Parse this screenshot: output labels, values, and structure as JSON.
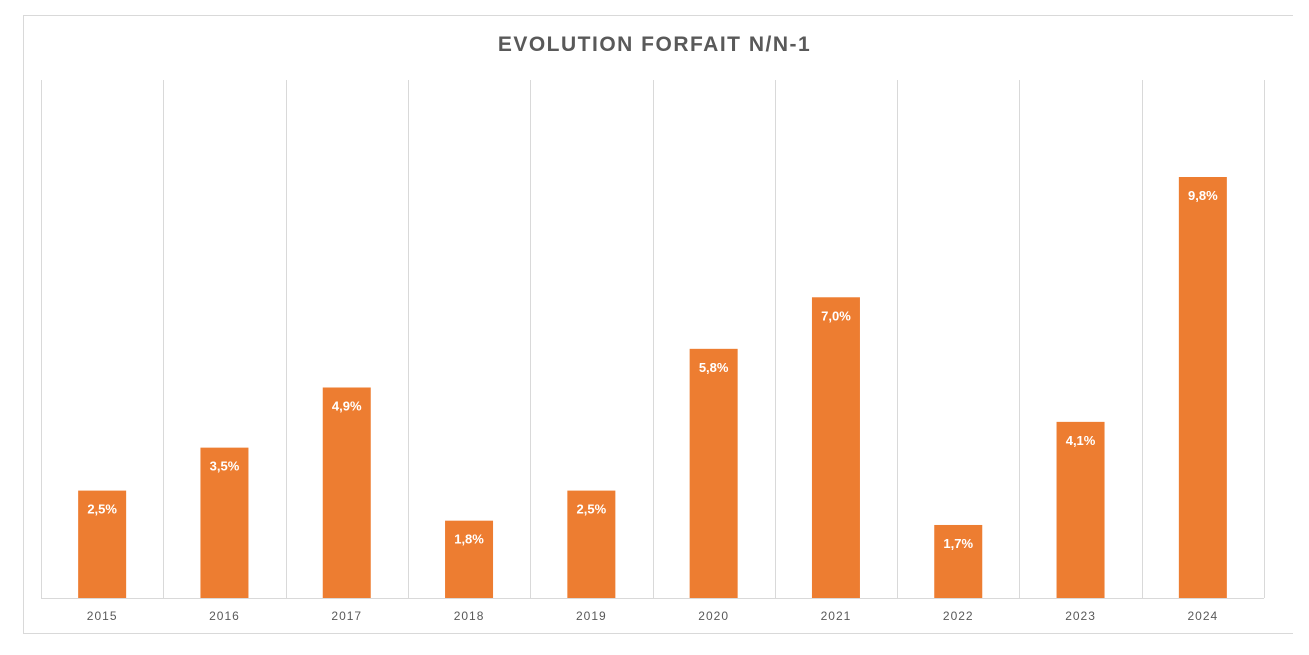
{
  "chart_data": {
    "type": "bar",
    "title": "EVOLUTION FORFAIT N/N-1",
    "categories": [
      "2015",
      "2016",
      "2017",
      "2018",
      "2019",
      "2020",
      "2021",
      "2022",
      "2023",
      "2024"
    ],
    "values": [
      2.5,
      3.5,
      4.9,
      1.8,
      2.5,
      5.8,
      7.0,
      1.7,
      4.1,
      9.8
    ],
    "data_labels": [
      "2,5%",
      "3,5%",
      "4,9%",
      "1,8%",
      "2,5%",
      "5,8%",
      "7,0%",
      "1,7%",
      "4,1%",
      "9,8%"
    ],
    "xlabel": "",
    "ylabel": "",
    "ylim": [
      0,
      12
    ],
    "grid": "vertical",
    "legend": "none",
    "bar_color": "#ED7D31"
  }
}
